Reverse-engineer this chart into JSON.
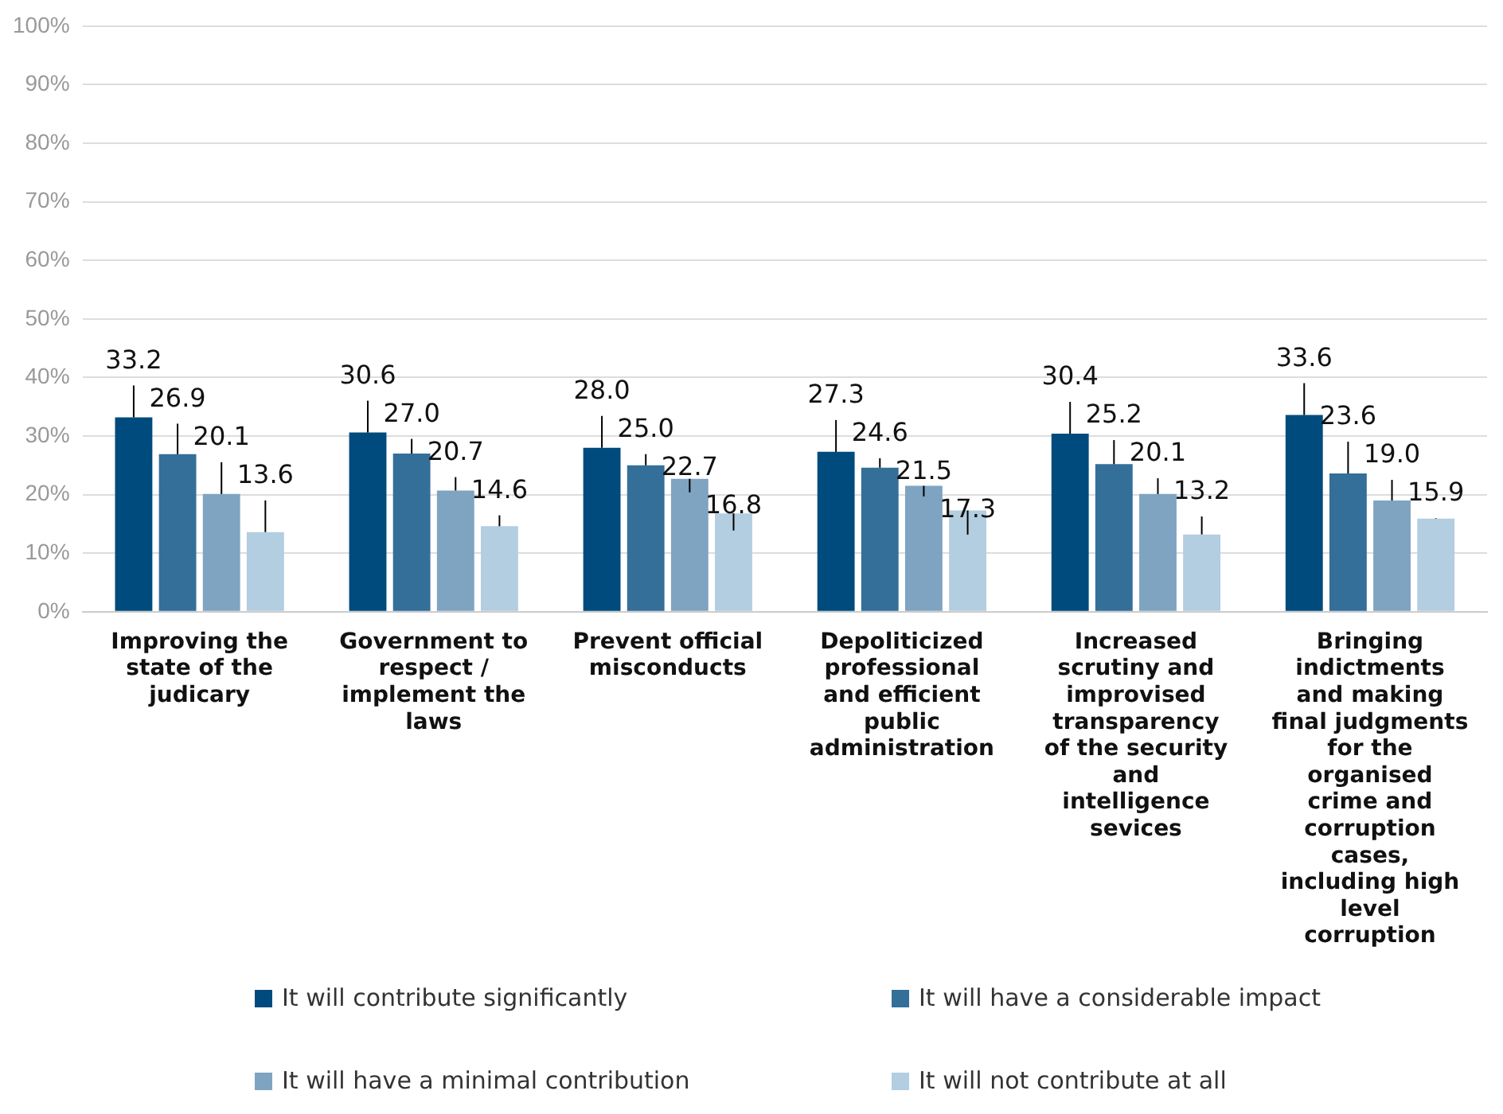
{
  "chart_data": {
    "type": "bar",
    "categories": [
      "Improving the state of the judicary",
      "Government to respect / implement the laws",
      "Prevent official misconducts",
      "Depoliticized professional and efficient public administration",
      "Increased scrutiny and improvised transparency of the security and intelligence sevices",
      "Bringing indictments and making final judgments for the organised crime and corruption cases, including high level corruption"
    ],
    "series": [
      {
        "name": "It will contribute significantly",
        "color": "#004b7d",
        "values": [
          33.2,
          30.6,
          28.0,
          27.3,
          30.4,
          33.6
        ],
        "value_labels": [
          "33.2",
          "30.6",
          "28.0",
          "27.3",
          "30.4",
          "33.6"
        ]
      },
      {
        "name": "It will have a considerable impact",
        "color": "#346f99",
        "values": [
          26.9,
          27.0,
          25.0,
          24.6,
          25.2,
          23.6
        ],
        "value_labels": [
          "26.9",
          "27.0",
          "25.0",
          "24.6",
          "25.2",
          "23.6"
        ]
      },
      {
        "name": "It will have a minimal contribution",
        "color": "#7fa4c2",
        "values": [
          20.1,
          20.7,
          22.7,
          21.5,
          20.1,
          19.0
        ],
        "value_labels": [
          "20.1",
          "20.7",
          "22.7",
          "21.5",
          "20.1",
          "19.0"
        ]
      },
      {
        "name": "It will not contribute at all",
        "color": "#b3cde1",
        "values": [
          13.6,
          14.6,
          16.8,
          17.3,
          13.2,
          15.9
        ],
        "value_labels": [
          "13.6",
          "14.6",
          "16.8",
          "17.3",
          "13.2",
          "15.9"
        ]
      }
    ],
    "ylim": [
      0,
      100
    ],
    "yticks": [
      {
        "value": 0,
        "label": "0%"
      },
      {
        "value": 10,
        "label": "10%"
      },
      {
        "value": 20,
        "label": "20%"
      },
      {
        "value": 30,
        "label": "30%"
      },
      {
        "value": 40,
        "label": "40%"
      },
      {
        "value": 50,
        "label": "50%"
      },
      {
        "value": 60,
        "label": "60%"
      },
      {
        "value": 70,
        "label": "70%"
      },
      {
        "value": 80,
        "label": "80%"
      },
      {
        "value": 90,
        "label": "90%"
      },
      {
        "value": 100,
        "label": "100%"
      }
    ],
    "grid": "y",
    "legend": "bottom"
  }
}
